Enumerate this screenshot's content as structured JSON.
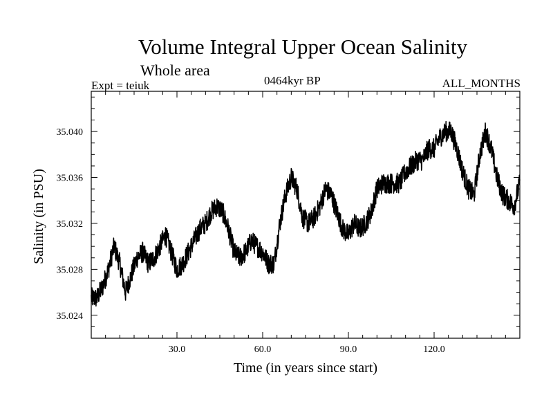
{
  "header": {
    "title": "Volume Integral Upper Ocean Salinity",
    "subtitle": "Whole area",
    "experiment": "Expt = teiuk",
    "period": "0464kyr BP",
    "months": "ALL_MONTHS"
  },
  "chart_data": {
    "type": "line",
    "title": "Volume Integral Upper Ocean Salinity",
    "subtitle": "Whole area",
    "xlabel": "Time (in years since start)",
    "ylabel": "Salinity (in PSU)",
    "xlim": [
      0,
      150
    ],
    "ylim": [
      35.022,
      35.0435
    ],
    "xticks": [
      30,
      60,
      90,
      120
    ],
    "xtick_labels": [
      "30.0",
      "60.0",
      "90.0",
      "120.0"
    ],
    "yticks": [
      35.024,
      35.028,
      35.032,
      35.036,
      35.04
    ],
    "ytick_labels": [
      "35.024",
      "35.028",
      "35.032",
      "35.036",
      "35.040"
    ],
    "grid": false,
    "series": [
      {
        "name": "Salinity",
        "noise_amplitude": 0.0009,
        "x": [
          0,
          2,
          4,
          6,
          8,
          10,
          12,
          14,
          16,
          18,
          20,
          22,
          24,
          26,
          28,
          30,
          32,
          34,
          36,
          38,
          40,
          42,
          44,
          46,
          48,
          50,
          52,
          54,
          56,
          58,
          60,
          62,
          64,
          66,
          68,
          70,
          72,
          74,
          76,
          78,
          80,
          82,
          84,
          86,
          88,
          90,
          92,
          94,
          96,
          98,
          100,
          102,
          104,
          106,
          108,
          110,
          112,
          114,
          116,
          118,
          120,
          122,
          124,
          126,
          128,
          130,
          132,
          134,
          136,
          138,
          140,
          142,
          144,
          146,
          148,
          150
        ],
        "values": [
          35.0255,
          35.0255,
          35.0265,
          35.028,
          35.03,
          35.0285,
          35.026,
          35.0275,
          35.029,
          35.0295,
          35.0285,
          35.029,
          35.03,
          35.031,
          35.0295,
          35.028,
          35.0285,
          35.0295,
          35.0305,
          35.0315,
          35.032,
          35.033,
          35.0335,
          35.033,
          35.0315,
          35.0295,
          35.029,
          35.0295,
          35.0305,
          35.03,
          35.0295,
          35.0285,
          35.0285,
          35.032,
          35.0345,
          35.036,
          35.035,
          35.0325,
          35.032,
          35.0325,
          35.0335,
          35.035,
          35.0345,
          35.033,
          35.0315,
          35.031,
          35.032,
          35.0315,
          35.032,
          35.033,
          35.035,
          35.0355,
          35.0355,
          35.0355,
          35.0355,
          35.0365,
          35.037,
          35.0375,
          35.0375,
          35.0385,
          35.0385,
          35.0395,
          35.04,
          35.04,
          35.0385,
          35.0365,
          35.035,
          35.0345,
          35.038,
          35.04,
          35.0385,
          35.036,
          35.0345,
          35.034,
          35.0335,
          35.0355
        ]
      }
    ]
  }
}
